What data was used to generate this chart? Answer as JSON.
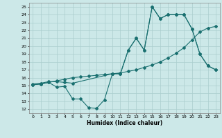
{
  "xlabel": "Humidex (Indice chaleur)",
  "bg_color": "#cce8e8",
  "line_color": "#1a7070",
  "grid_color": "#aacece",
  "xlim": [
    -0.5,
    23.5
  ],
  "ylim": [
    11.5,
    25.5
  ],
  "xticks": [
    0,
    1,
    2,
    3,
    4,
    5,
    6,
    7,
    8,
    9,
    10,
    11,
    12,
    13,
    14,
    15,
    16,
    17,
    18,
    19,
    20,
    21,
    22,
    23
  ],
  "yticks": [
    12,
    13,
    14,
    15,
    16,
    17,
    18,
    19,
    20,
    21,
    22,
    23,
    24,
    25
  ],
  "line1_x": [
    0,
    1,
    2,
    3,
    4,
    5,
    10,
    11,
    12,
    13,
    14,
    15,
    16,
    17,
    18,
    19,
    20,
    21,
    22,
    23
  ],
  "line1_y": [
    15.2,
    15.3,
    15.5,
    15.5,
    15.4,
    15.3,
    16.5,
    16.5,
    19.5,
    21.0,
    19.5,
    25.0,
    23.5,
    24.0,
    24.0,
    24.0,
    22.2,
    19.0,
    17.5,
    17.0
  ],
  "line2_x": [
    0,
    1,
    2,
    3,
    4,
    5,
    6,
    7,
    8,
    9,
    10,
    11,
    12,
    13,
    14,
    15,
    16,
    17,
    18,
    19,
    20,
    21,
    22,
    23
  ],
  "line2_y": [
    15.1,
    15.2,
    15.4,
    15.6,
    15.8,
    16.0,
    16.1,
    16.2,
    16.3,
    16.4,
    16.5,
    16.6,
    16.8,
    17.0,
    17.3,
    17.6,
    18.0,
    18.5,
    19.1,
    19.8,
    20.8,
    21.8,
    22.3,
    22.5
  ],
  "line3_x": [
    0,
    1,
    2,
    3,
    4,
    5,
    6,
    7,
    8,
    9,
    10,
    11,
    12,
    13,
    14,
    15,
    16,
    17,
    18,
    19,
    20,
    21,
    22,
    23
  ],
  "line3_y": [
    15.1,
    15.2,
    15.4,
    14.8,
    14.9,
    13.3,
    13.3,
    12.2,
    12.1,
    13.2,
    16.5,
    16.5,
    19.5,
    21.0,
    19.5,
    25.0,
    23.5,
    24.0,
    24.0,
    24.0,
    22.2,
    19.0,
    17.5,
    17.0
  ]
}
